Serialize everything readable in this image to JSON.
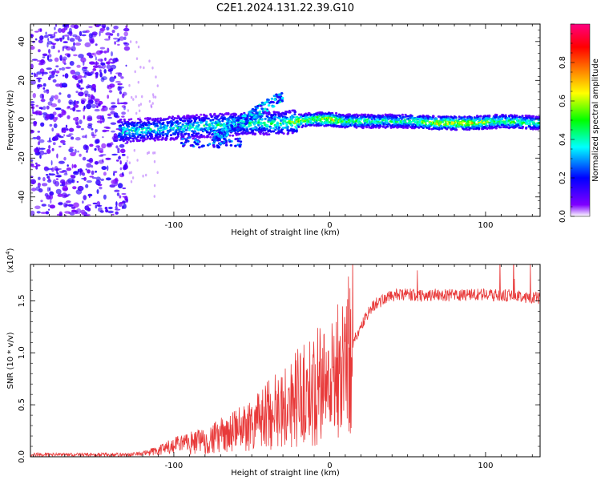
{
  "title": "C2E1.2024.131.22.39.G10",
  "chart_data": [
    {
      "type": "heatmap",
      "xlabel": "Height of straight line (km)",
      "ylabel": "Frequency (Hz)",
      "xlim": [
        -192,
        135
      ],
      "ylim": [
        -50,
        49
      ],
      "xticks": [
        -100,
        0,
        100
      ],
      "yticks": [
        -40,
        -20,
        0,
        20,
        40
      ],
      "colorbar": {
        "label": "Normalized spectral amplitude",
        "range": [
          0,
          1
        ],
        "ticks": [
          "0.0",
          "0.2",
          "0.4",
          "0.6",
          "0.8"
        ],
        "colors": [
          "#ffffff",
          "#7f00ff",
          "#0000ff",
          "#00ffff",
          "#00ff00",
          "#ffff00",
          "#ff7f00",
          "#ff0000",
          "#ff0080"
        ]
      },
      "ridge": [
        {
          "x": -130,
          "f": -6,
          "amp": 0.4
        },
        {
          "x": -110,
          "f": -5,
          "amp": 0.38
        },
        {
          "x": -90,
          "f": -4,
          "amp": 0.4
        },
        {
          "x": -70,
          "f": -3,
          "amp": 0.42
        },
        {
          "x": -50,
          "f": -2,
          "amp": 0.45
        },
        {
          "x": -30,
          "f": -2,
          "amp": 0.45
        },
        {
          "x": -20,
          "f": -1,
          "amp": 0.6
        },
        {
          "x": -10,
          "f": 0,
          "amp": 0.55
        },
        {
          "x": 0,
          "f": 0,
          "amp": 0.7
        },
        {
          "x": 10,
          "f": -1,
          "amp": 0.5
        },
        {
          "x": 30,
          "f": -1,
          "amp": 0.45
        },
        {
          "x": 50,
          "f": -1,
          "amp": 0.45
        },
        {
          "x": 70,
          "f": -2,
          "amp": 0.65
        },
        {
          "x": 90,
          "f": -2,
          "amp": 0.65
        },
        {
          "x": 110,
          "f": -1,
          "amp": 0.5
        },
        {
          "x": 135,
          "f": -2,
          "amp": 0.45
        }
      ]
    },
    {
      "type": "line",
      "xlabel": "Height of straight line (km)",
      "ylabel": "SNR (10 * v/v)",
      "multiplier": "(x10",
      "multiplier_exp": "4",
      "multiplier_close": ")",
      "xlim": [
        -192,
        135
      ],
      "ylim": [
        0,
        1.85
      ],
      "xticks": [
        -100,
        0,
        100
      ],
      "yticks": [
        "0.0",
        "0.5",
        "1.0",
        "1.5"
      ],
      "color": "#e83a3a",
      "x": [
        -192,
        -170,
        -150,
        -130,
        -120,
        -110,
        -100,
        -90,
        -80,
        -70,
        -60,
        -50,
        -40,
        -30,
        -25,
        -20,
        -15,
        -10,
        -5,
        0,
        5,
        10,
        15,
        20,
        25,
        30,
        40,
        50,
        60,
        70,
        80,
        90,
        100,
        110,
        120,
        135
      ],
      "y": [
        0.02,
        0.02,
        0.02,
        0.02,
        0.03,
        0.06,
        0.1,
        0.13,
        0.16,
        0.2,
        0.25,
        0.32,
        0.4,
        0.48,
        0.52,
        0.58,
        0.6,
        0.65,
        0.7,
        0.75,
        0.82,
        0.95,
        1.1,
        1.25,
        1.4,
        1.48,
        1.55,
        1.56,
        1.55,
        1.56,
        1.55,
        1.56,
        1.56,
        1.55,
        1.55,
        1.52
      ]
    }
  ]
}
